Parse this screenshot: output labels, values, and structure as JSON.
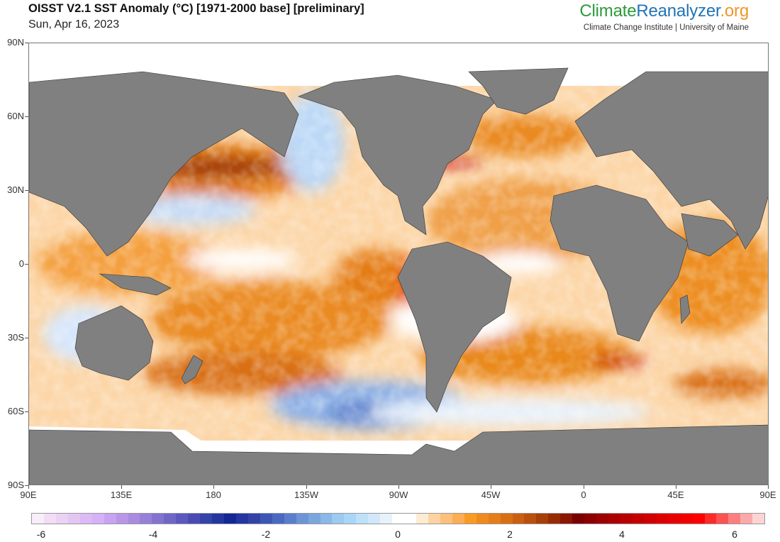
{
  "header": {
    "title": "OISST V2.1 SST Anomaly (°C) [1971-2000 base] [preliminary]",
    "date": "Sun, Apr 16, 2023"
  },
  "brand": {
    "part1": "Climate",
    "part2": "Reanalyzer",
    "part3": ".org",
    "subtitle": "Climate Change Institute | University of Maine",
    "colors": {
      "green": "#2a9a3a",
      "blue": "#1f74b7",
      "orange": "#f0962a"
    }
  },
  "map": {
    "projection": "equirectangular",
    "center_longitude": "90W (spans 90E to 90E)",
    "land_color": "#808080",
    "sea_ice_color": "#ffffff",
    "y_axis_labels": [
      "90N",
      "60N",
      "30N",
      "0",
      "30S",
      "60S",
      "90S"
    ],
    "x_axis_labels": [
      "90E",
      "135E",
      "180",
      "135W",
      "90W",
      "45W",
      "0",
      "45E",
      "90E"
    ]
  },
  "colorbar": {
    "min": -6,
    "max": 6,
    "tick_labels": [
      "-6",
      "-4",
      "-2",
      "0",
      "2",
      "4",
      "6"
    ],
    "colors": [
      "#f7eef9",
      "#f2dcf6",
      "#ead2f4",
      "#e3c6f2",
      "#dbbaf6",
      "#d5b2f7",
      "#c9a3f2",
      "#b996e8",
      "#a98be0",
      "#9680d8",
      "#8273cf",
      "#6f66c6",
      "#5d58bf",
      "#4b4bb5",
      "#3343a6",
      "#24369f",
      "#132894",
      "#24369f",
      "#3343a6",
      "#3c56b6",
      "#4b69c2",
      "#5a7ecb",
      "#6d94d7",
      "#7aa6de",
      "#8bb8e8",
      "#9ccaf0",
      "#a9d6f8",
      "#bee1f9",
      "#d2e8fa",
      "#e8f2fb",
      "#ffffff",
      "#ffffff",
      "#fdebd2",
      "#fdd3a2",
      "#fcc07c",
      "#fbae53",
      "#f99b22",
      "#ef8a1c",
      "#e57d18",
      "#d96f14",
      "#c95f10",
      "#b9500c",
      "#a63f08",
      "#962b04",
      "#8a1702",
      "#7b0000",
      "#8c0000",
      "#9c0000",
      "#aa0000",
      "#b80000",
      "#c50000",
      "#d10000",
      "#dd0000",
      "#e80000",
      "#f20000",
      "#ff0000",
      "#fd2a2a",
      "#fc5252",
      "#fb7f7f",
      "#fbaaaa",
      "#fdd4d4"
    ]
  }
}
